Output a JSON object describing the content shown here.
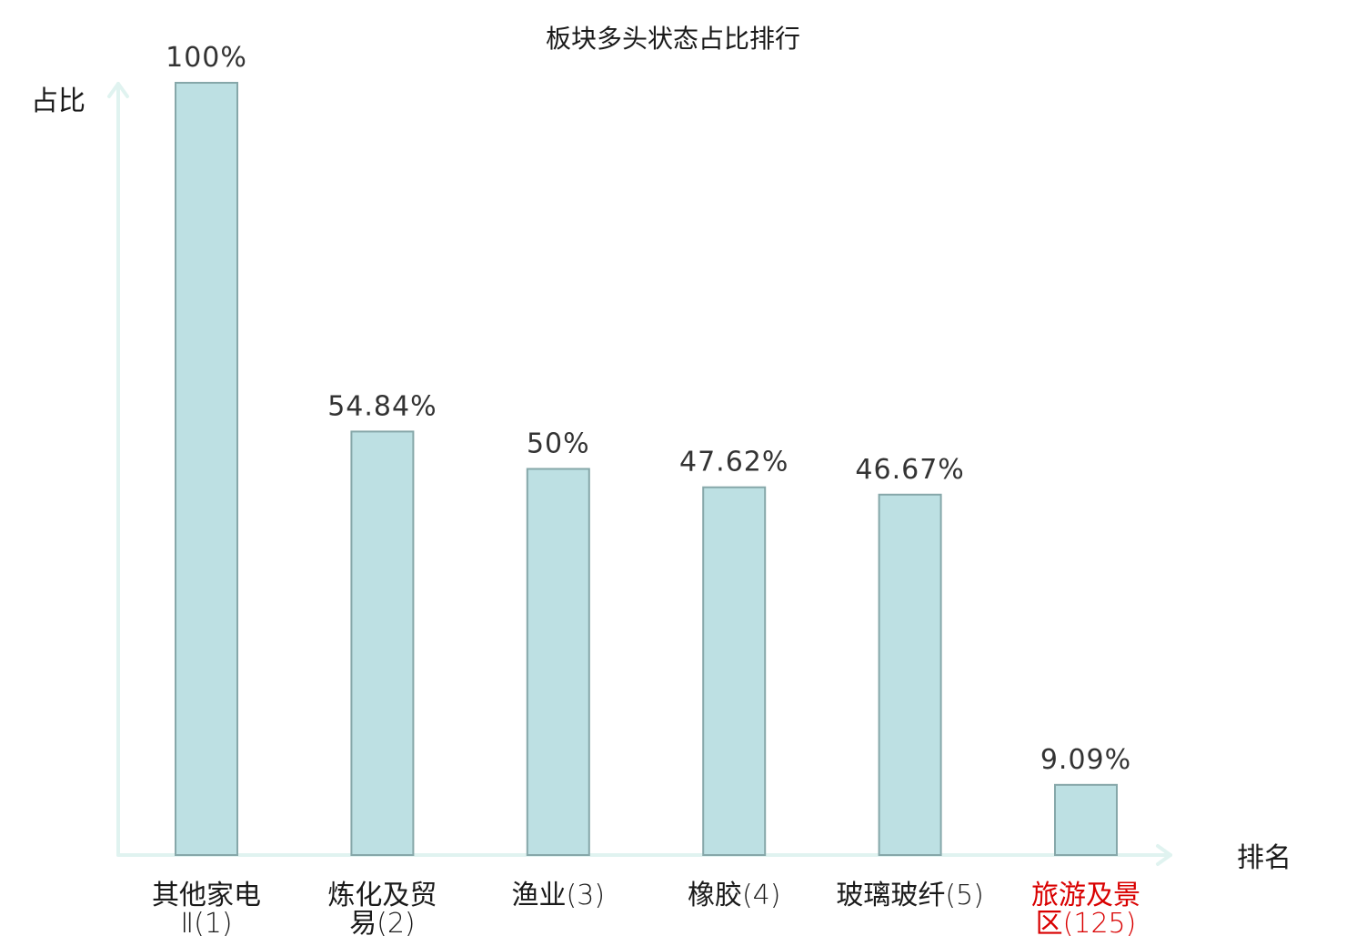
{
  "chart_data": {
    "type": "bar",
    "title": "板块多头状态占比排行",
    "ylabel": "占比",
    "xlabel": "排名",
    "ylim": [
      0,
      100
    ],
    "categories": [
      {
        "lines": [
          {
            "cjk": "其他家电",
            "num": ""
          },
          {
            "cjk": "",
            "num": "Ⅱ(1)"
          }
        ],
        "highlight": false
      },
      {
        "lines": [
          {
            "cjk": "炼化及贸",
            "num": ""
          },
          {
            "cjk": "易",
            "num": "(2)"
          }
        ],
        "highlight": false
      },
      {
        "lines": [
          {
            "cjk": "渔业",
            "num": "(3)"
          }
        ],
        "highlight": false
      },
      {
        "lines": [
          {
            "cjk": "橡胶",
            "num": "(4)"
          }
        ],
        "highlight": false
      },
      {
        "lines": [
          {
            "cjk": "玻璃玻纤",
            "num": "(5)"
          }
        ],
        "highlight": false
      },
      {
        "lines": [
          {
            "cjk": "旅游及景",
            "num": ""
          },
          {
            "cjk": "区",
            "num": "(125)"
          }
        ],
        "highlight": true
      }
    ],
    "values": [
      100,
      54.84,
      50,
      47.62,
      46.67,
      9.09
    ],
    "value_labels": [
      "100%",
      "54.84%",
      "50%",
      "47.62%",
      "46.67%",
      "9.09%"
    ],
    "colors": {
      "bar_fill": "#bde0e3",
      "bar_stroke": "#86a7a9",
      "axis": "#e0f3f0",
      "label_text": "#1a1a1a",
      "highlight_text": "#d90000"
    },
    "grid": false,
    "legend": "none"
  }
}
